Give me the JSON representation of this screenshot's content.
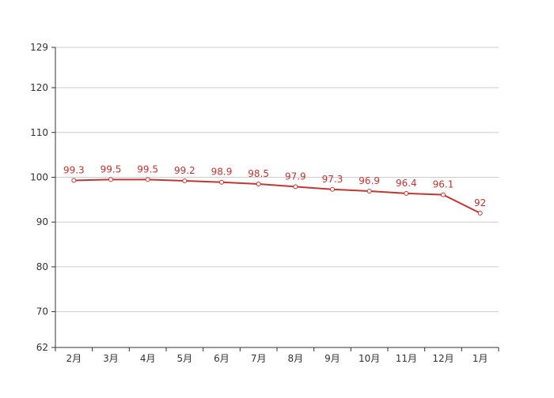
{
  "chart_data": {
    "type": "line",
    "categories": [
      "2月",
      "3月",
      "4月",
      "5月",
      "6月",
      "7月",
      "8月",
      "9月",
      "10月",
      "11月",
      "12月",
      "1月"
    ],
    "series": [
      {
        "values": [
          99.3,
          99.5,
          99.5,
          99.2,
          98.9,
          98.5,
          97.9,
          97.3,
          96.9,
          96.4,
          96.1,
          92
        ]
      }
    ],
    "y_ticks": [
      62,
      70,
      80,
      90,
      100,
      110,
      120,
      129
    ],
    "ylim": [
      62,
      129
    ],
    "grid": true,
    "legend": "none",
    "colors": {
      "line": "#c23531",
      "grid": "#cccccc",
      "axis": "#333333"
    }
  }
}
